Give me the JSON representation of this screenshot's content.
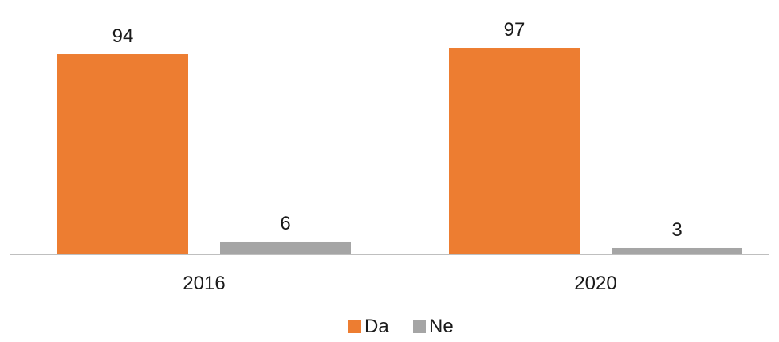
{
  "chart_data": {
    "type": "bar",
    "categories": [
      "2016",
      "2020"
    ],
    "series": [
      {
        "name": "Da",
        "values": [
          94,
          97
        ],
        "color": "#ED7D31"
      },
      {
        "name": "Ne",
        "values": [
          6,
          3
        ],
        "color": "#A5A5A5"
      }
    ],
    "title": "",
    "xlabel": "",
    "ylabel": "",
    "ylim": [
      0,
      100
    ],
    "grid": false,
    "legend_position": "bottom",
    "data_labels": true
  }
}
